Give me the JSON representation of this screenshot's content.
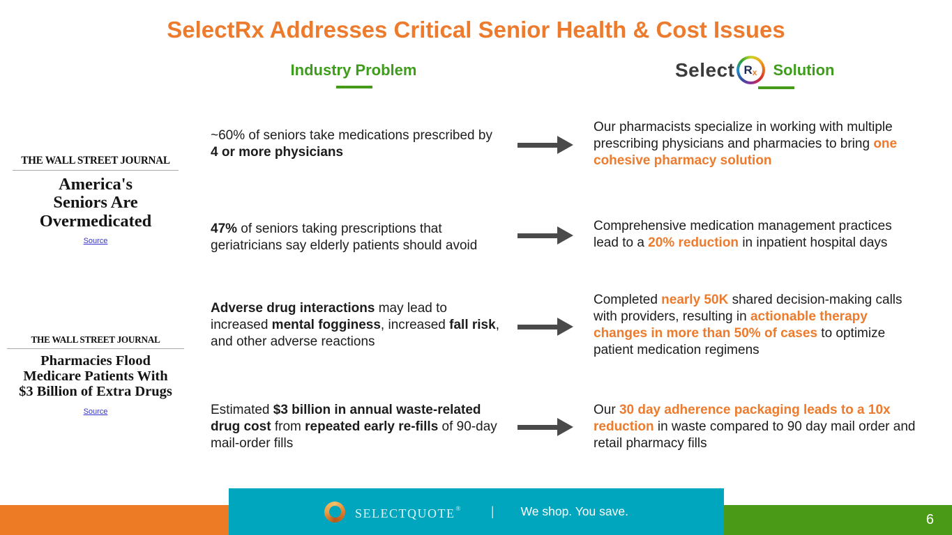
{
  "slide": {
    "title": "SelectRx Addresses Critical Senior Health & Cost Issues",
    "page_number": "6"
  },
  "colors": {
    "title_orange": "#ED7B2D",
    "highlight_orange": "#ED7B2D",
    "header_green": "#3F9C1C",
    "footer_orange": "#ED7B26",
    "footer_teal": "#00A5BE",
    "footer_green": "#4A9A17",
    "arrow_gray": "#4A4A4A",
    "link_blue": "#3333CC"
  },
  "headers": {
    "problem_label": "Industry Problem",
    "solution_brand": "Select",
    "solution_rx_r": "R",
    "solution_rx_x": "x",
    "solution_label": "Solution"
  },
  "clippings": [
    {
      "masthead": "THE WALL STREET JOURNAL",
      "headline": "America's\nSeniors Are\nOvermedicated",
      "source_label": "Source"
    },
    {
      "masthead": "THE WALL STREET JOURNAL",
      "headline": "Pharmacies Flood\nMedicare Patients With\n$3 Billion of Extra Drugs",
      "source_label": "Source"
    }
  ],
  "rows": [
    {
      "problem": [
        [
          "n",
          "~60% of seniors take medications prescribed by "
        ],
        [
          "b",
          "4 or more physicians"
        ]
      ],
      "solution": [
        [
          "n",
          "Our pharmacists specialize in working with multiple prescribing physicians and pharmacies to bring "
        ],
        [
          "o",
          "one cohesive pharmacy solution"
        ]
      ]
    },
    {
      "problem": [
        [
          "b",
          "47%"
        ],
        [
          "n",
          " of seniors taking prescriptions that geriatricians say elderly patients should avoid"
        ]
      ],
      "solution": [
        [
          "n",
          "Comprehensive medication management practices lead to a "
        ],
        [
          "o",
          "20% reduction"
        ],
        [
          "n",
          " in inpatient hospital days"
        ]
      ]
    },
    {
      "problem": [
        [
          "b",
          "Adverse drug interactions"
        ],
        [
          "n",
          " may lead to increased "
        ],
        [
          "b",
          "mental fogginess"
        ],
        [
          "n",
          ", increased "
        ],
        [
          "b",
          "fall risk"
        ],
        [
          "n",
          ", and other adverse reactions"
        ]
      ],
      "solution": [
        [
          "n",
          "Completed "
        ],
        [
          "o",
          "nearly 50K"
        ],
        [
          "n",
          " shared decision-making calls with providers, resulting in "
        ],
        [
          "o",
          "actionable therapy changes in more than 50% of cases"
        ],
        [
          "n",
          " to optimize patient medication regimens"
        ]
      ]
    },
    {
      "problem": [
        [
          "n",
          "Estimated "
        ],
        [
          "b",
          "$3 billion in annual waste-related drug cost"
        ],
        [
          "n",
          " from "
        ],
        [
          "b",
          "repeated early re-fills"
        ],
        [
          "n",
          " of 90-day mail-order fills"
        ]
      ],
      "solution": [
        [
          "n",
          "Our "
        ],
        [
          "o",
          "30 day adherence packaging leads to a 10x reduction"
        ],
        [
          "n",
          " in waste compared to 90 day mail order and retail pharmacy fills"
        ]
      ]
    }
  ],
  "footer": {
    "brand": "SelectQuote",
    "reg_mark": "®",
    "divider": "|",
    "tagline": "We shop. You save."
  }
}
